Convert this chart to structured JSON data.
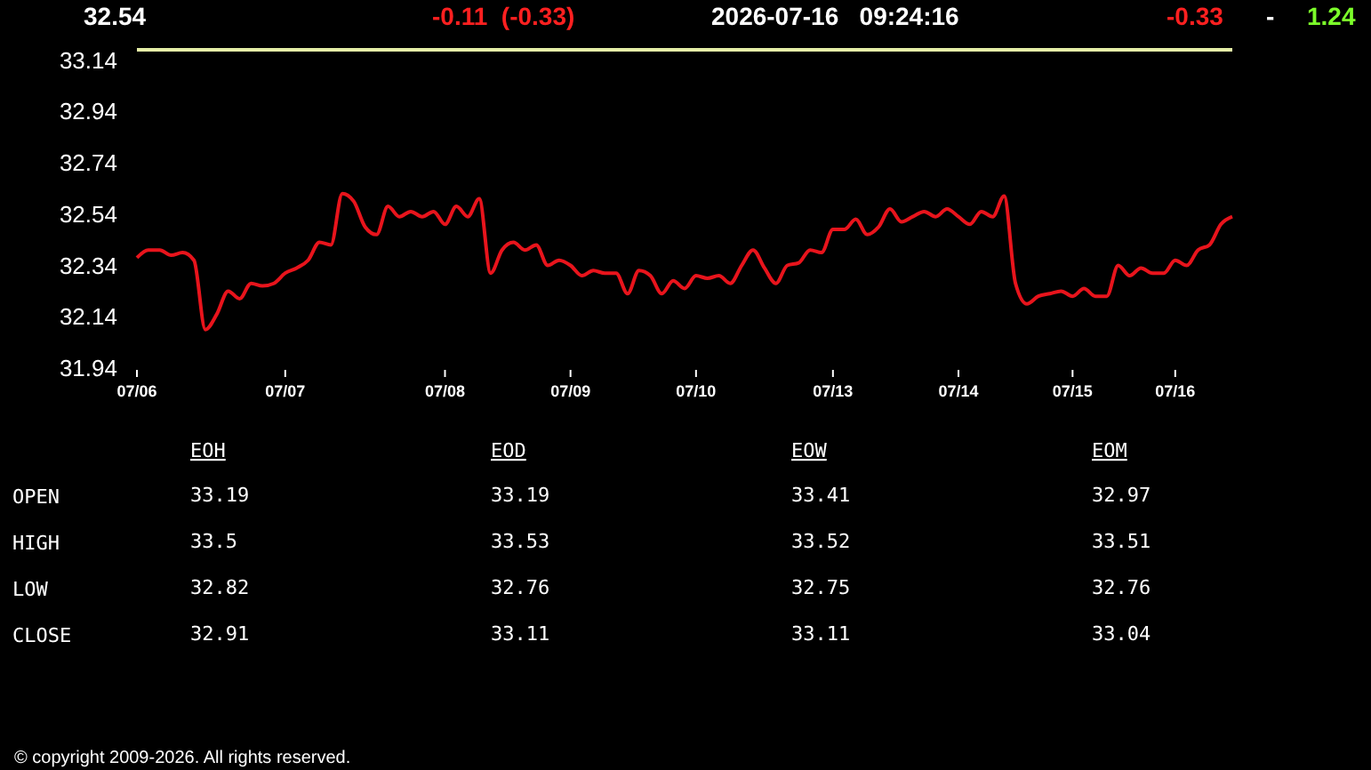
{
  "chart_data": [
    {
      "type": "line",
      "annotations": [
        "32.54",
        "-0.11  (-0.33)",
        "2026-07-16   09:24:16",
        "-0.33",
        "-",
        "1.24",
        "© copyright 2009-2026. All rights reserved."
      ],
      "categories": [
        "07/06",
        null,
        null,
        null,
        null,
        null,
        null,
        null,
        null,
        null,
        null,
        null,
        null,
        "07/07",
        null,
        null,
        null,
        null,
        null,
        null,
        null,
        null,
        null,
        null,
        null,
        null,
        null,
        "07/08",
        null,
        null,
        null,
        null,
        null,
        null,
        null,
        null,
        null,
        null,
        "07/09",
        null,
        null,
        null,
        null,
        null,
        null,
        null,
        null,
        null,
        null,
        "07/10",
        null,
        null,
        null,
        null,
        null,
        null,
        null,
        null,
        null,
        null,
        null,
        "07/13",
        null,
        null,
        null,
        null,
        null,
        null,
        null,
        null,
        null,
        null,
        "07/14",
        null,
        null,
        null,
        null,
        null,
        null,
        null,
        null,
        null,
        "07/15",
        null,
        null,
        null,
        null,
        null,
        null,
        null,
        null,
        "07/16",
        null,
        null,
        null,
        null,
        null
      ],
      "series": [
        {
          "color": "#e8141c",
          "values": [
            32.37,
            32.4,
            32.4,
            32.38,
            32.39,
            32.36,
            32.09,
            32.15,
            32.24,
            32.21,
            32.27,
            32.26,
            32.27,
            32.31,
            32.33,
            32.36,
            32.43,
            32.42,
            32.62,
            32.59,
            32.49,
            32.46,
            32.57,
            32.53,
            32.55,
            32.53,
            32.55,
            32.5,
            32.57,
            32.53,
            32.6,
            32.31,
            32.4,
            32.43,
            32.4,
            32.42,
            32.34,
            32.36,
            32.34,
            32.3,
            32.32,
            32.31,
            32.31,
            32.23,
            32.32,
            32.3,
            32.23,
            32.28,
            32.25,
            32.3,
            32.29,
            32.3,
            32.27,
            32.34,
            32.4,
            32.33,
            32.27,
            32.34,
            32.35,
            32.4,
            32.39,
            32.48,
            32.48,
            32.52,
            32.46,
            32.49,
            32.56,
            32.51,
            32.53,
            32.55,
            32.53,
            32.56,
            32.53,
            32.5,
            32.55,
            32.53,
            32.61,
            32.27,
            32.19,
            32.22,
            32.23,
            32.24,
            32.22,
            32.25,
            32.22,
            32.22,
            32.34,
            32.3,
            32.33,
            32.31,
            32.31,
            32.36,
            32.34,
            32.4,
            32.42,
            32.5,
            32.53
          ]
        }
      ],
      "ylim": [
        31.94,
        33.18
      ],
      "yticks": [
        31.94,
        32.14,
        32.34,
        32.54,
        32.74,
        32.94,
        33.14
      ],
      "ref_lines": [
        {
          "axis": "y",
          "value": 33.18,
          "color": "#e6f0a8"
        }
      ],
      "grid": false
    },
    {
      "type": "other",
      "annotations": [
        "EOH",
        "EOD",
        "EOW",
        "EOM",
        "OPEN",
        "33.19",
        "33.19",
        "33.41",
        "32.97",
        "HIGH",
        "33.5",
        "33.53",
        "33.52",
        "33.51",
        "LOW",
        "32.82",
        "32.76",
        "32.75",
        "32.76",
        "CLOSE",
        "32.91",
        "33.11",
        "33.11",
        "33.04"
      ]
    }
  ]
}
